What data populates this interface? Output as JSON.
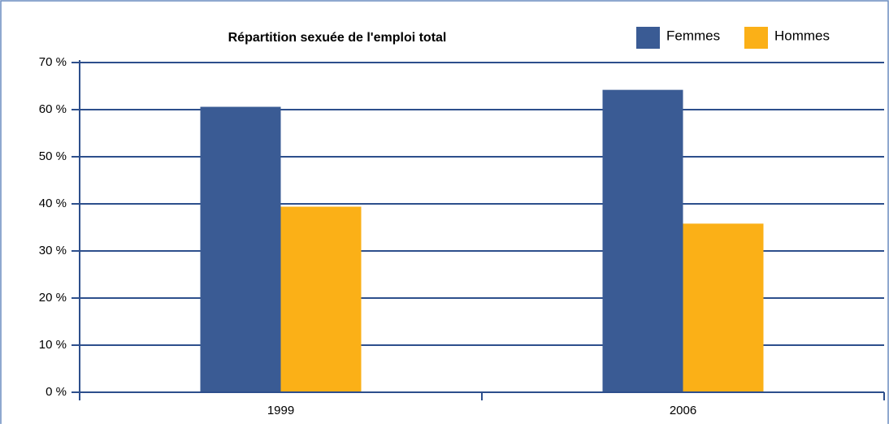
{
  "chart_data": {
    "type": "bar",
    "title": "Répartition sexuée de l'emploi total",
    "categories": [
      "1999",
      "2006"
    ],
    "series": [
      {
        "name": "Femmes",
        "color": "#3a5b94",
        "values": [
          60.6,
          64.2
        ]
      },
      {
        "name": "Hommes",
        "color": "#fbb017",
        "values": [
          39.4,
          35.8
        ]
      }
    ],
    "ylim": [
      0,
      70
    ],
    "yticks": [
      {
        "value": 0,
        "label": "0 %"
      },
      {
        "value": 10,
        "label": "10 %"
      },
      {
        "value": 20,
        "label": "20 %"
      },
      {
        "value": 30,
        "label": "30 %"
      },
      {
        "value": 40,
        "label": "40 %"
      },
      {
        "value": 50,
        "label": "50 %"
      },
      {
        "value": 60,
        "label": "60 %"
      },
      {
        "value": 70,
        "label": "70 %"
      }
    ],
    "grid": true,
    "legend": "top-right"
  }
}
